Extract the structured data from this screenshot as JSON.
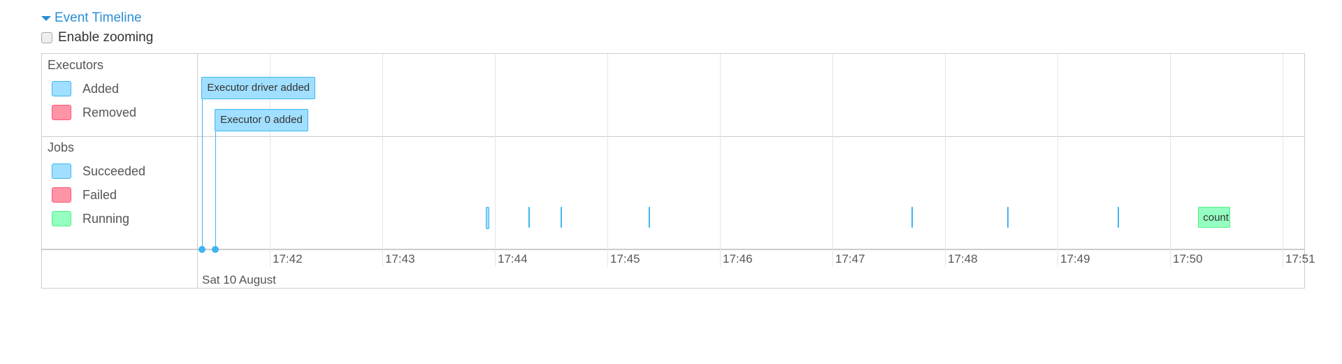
{
  "header": {
    "title": "Event Timeline",
    "zoom_label": "Enable zooming",
    "zoom_checked": false
  },
  "colors": {
    "succeeded_fill": "#a0dfff",
    "succeeded_border": "#3eb5f1",
    "failed_fill": "#ff94a7",
    "failed_border": "#ff5577",
    "running_fill": "#94ffc0",
    "running_border": "#55ee88",
    "link": "#2a8dd4"
  },
  "legend": {
    "executors": {
      "title": "Executors",
      "items": [
        {
          "label": "Added",
          "status": "succeeded"
        },
        {
          "label": "Removed",
          "status": "failed"
        }
      ]
    },
    "jobs": {
      "title": "Jobs",
      "items": [
        {
          "label": "Succeeded",
          "status": "succeeded"
        },
        {
          "label": "Failed",
          "status": "failed"
        },
        {
          "label": "Running",
          "status": "running"
        }
      ]
    }
  },
  "axis": {
    "ticks": [
      "17:42",
      "17:43",
      "17:44",
      "17:45",
      "17:46",
      "17:47",
      "17:48",
      "17:49",
      "17:50",
      "17:51"
    ],
    "date": "Sat 10 August"
  },
  "executor_events": [
    {
      "label": "Executor driver added",
      "time": "17:41:24"
    },
    {
      "label": "Executor 0 added",
      "time": "17:41:31"
    }
  ],
  "jobs": [
    {
      "start": "17:43:55",
      "end": "17:43:57",
      "status": "succeeded",
      "label": ""
    },
    {
      "start": "17:44:18",
      "end": "17:44:18",
      "status": "succeeded",
      "label": ""
    },
    {
      "start": "17:44:35",
      "end": "17:44:35",
      "status": "succeeded",
      "label": ""
    },
    {
      "start": "17:45:22",
      "end": "17:45:22",
      "status": "succeeded",
      "label": ""
    },
    {
      "start": "17:47:42",
      "end": "17:47:43",
      "status": "succeeded",
      "label": ""
    },
    {
      "start": "17:48:33",
      "end": "17:48:33",
      "status": "succeeded",
      "label": ""
    },
    {
      "start": "17:49:32",
      "end": "17:49:32",
      "status": "succeeded",
      "label": ""
    },
    {
      "start": "17:50:15",
      "end": "17:50:32",
      "status": "running",
      "label": "count"
    }
  ]
}
